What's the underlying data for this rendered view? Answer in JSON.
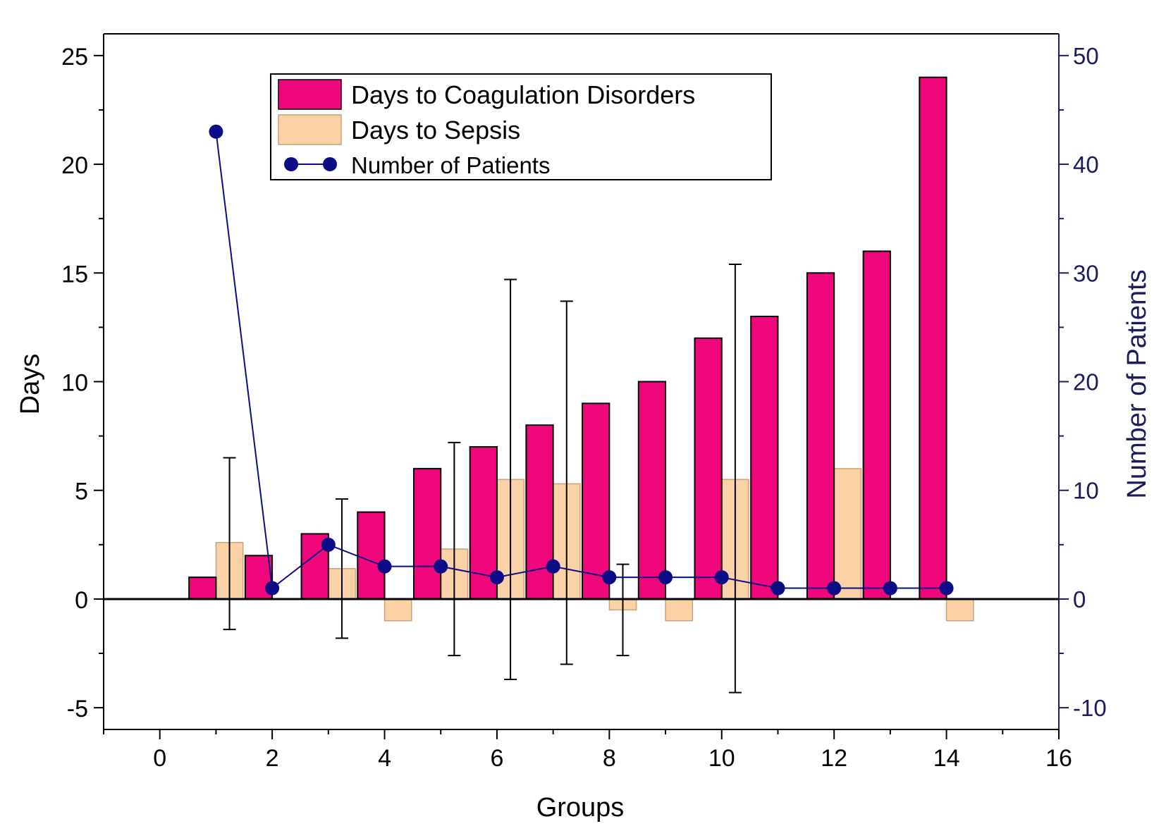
{
  "chart_data": {
    "type": "bar",
    "xlabel": "Groups",
    "ylabel": "Days",
    "y2label": "Number of Patients",
    "xlim": [
      -1,
      16
    ],
    "ylim": [
      -6,
      26
    ],
    "y2lim": [
      -12,
      52
    ],
    "xticks": [
      0,
      2,
      4,
      6,
      8,
      10,
      12,
      14,
      16
    ],
    "yticks": [
      -5,
      0,
      5,
      10,
      15,
      20,
      25
    ],
    "y2ticks": [
      -10,
      0,
      10,
      20,
      30,
      40,
      50
    ],
    "colors": {
      "coag": "#f0077c",
      "sepsis": "#fbd2a5",
      "patients": "#0c0c86",
      "axis_right": "#1b1b5e"
    },
    "legend": {
      "placement": "top-center",
      "entries": [
        "Days to Coagulation Disorders",
        "Days to Sepsis",
        "Number of Patients"
      ]
    },
    "series": [
      {
        "name": "Days to Coagulation Disorders",
        "type": "bar",
        "x": [
          1,
          2,
          3,
          4,
          5,
          6,
          7,
          8,
          9,
          10,
          11,
          12,
          13,
          14
        ],
        "values": [
          1,
          2,
          3,
          4,
          6,
          7,
          8,
          9,
          10,
          12,
          13,
          15,
          16,
          24
        ]
      },
      {
        "name": "Days to Sepsis",
        "type": "bar",
        "x": [
          1,
          2,
          3,
          4,
          5,
          6,
          7,
          8,
          9,
          10,
          11,
          12,
          13,
          14
        ],
        "values": [
          2.6,
          0,
          1.4,
          -1,
          2.3,
          5.5,
          5.3,
          -0.5,
          -1,
          5.5,
          0,
          6,
          0,
          -1
        ],
        "error_bars": [
          {
            "x": 1,
            "low": -1.4,
            "high": 6.5
          },
          {
            "x": 3,
            "low": -1.8,
            "high": 4.6
          },
          {
            "x": 5,
            "low": -2.6,
            "high": 7.2
          },
          {
            "x": 6,
            "low": -3.7,
            "high": 14.7
          },
          {
            "x": 7,
            "low": -3.0,
            "high": 13.7
          },
          {
            "x": 8,
            "low": -2.6,
            "high": 1.6
          },
          {
            "x": 10,
            "low": -4.3,
            "high": 15.4
          }
        ]
      },
      {
        "name": "Number of Patients",
        "type": "line",
        "axis": "right",
        "x": [
          1,
          2,
          3,
          4,
          5,
          6,
          7,
          8,
          9,
          10,
          11,
          12,
          13,
          14
        ],
        "values": [
          43,
          1,
          5,
          3,
          3,
          2,
          3,
          2,
          2,
          2,
          1,
          1,
          1,
          1
        ]
      }
    ]
  }
}
